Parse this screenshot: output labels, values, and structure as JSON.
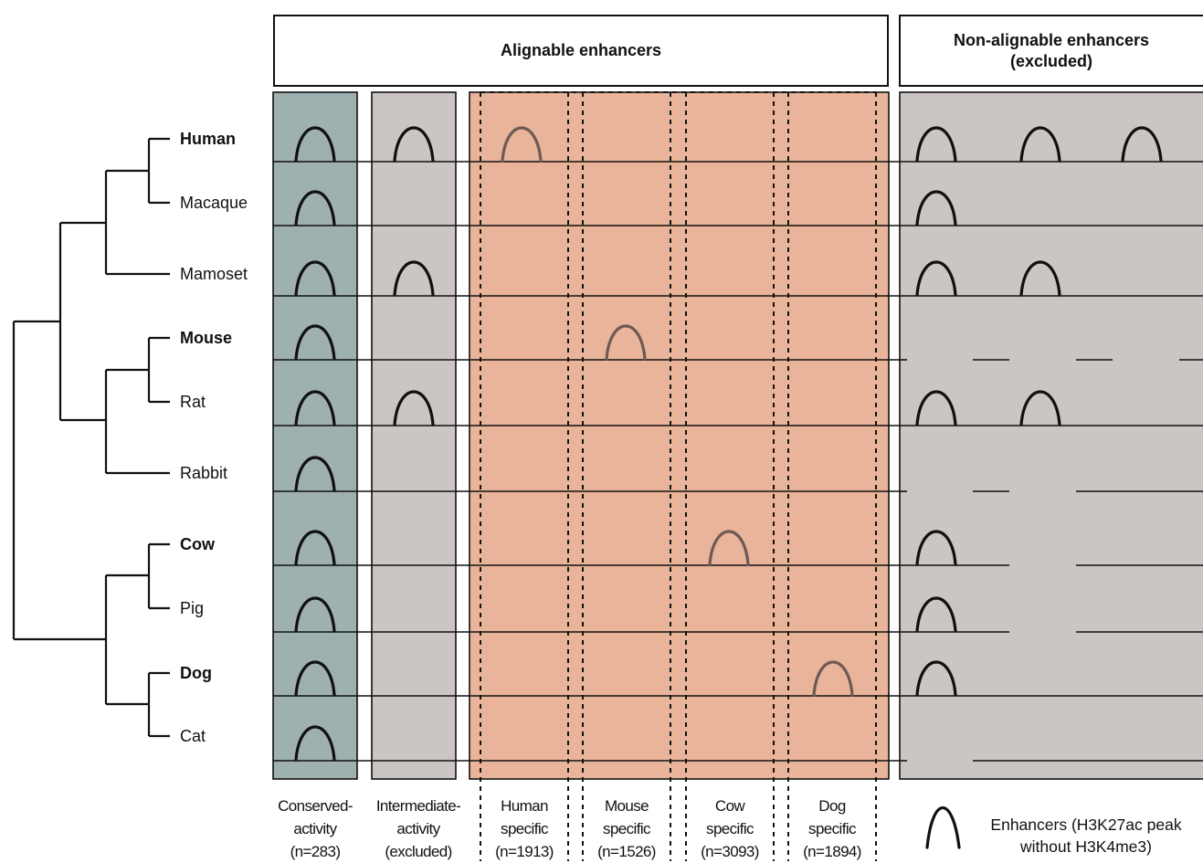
{
  "headers": {
    "alignable": "Alignable enhancers",
    "non_alignable": "Non-alignable enhancers\n(excluded)"
  },
  "species": [
    {
      "name": "Human",
      "bold": true
    },
    {
      "name": "Macaque",
      "bold": false
    },
    {
      "name": "Mamoset",
      "bold": false
    },
    {
      "name": "Mouse",
      "bold": true
    },
    {
      "name": "Rat",
      "bold": false
    },
    {
      "name": "Rabbit",
      "bold": false
    },
    {
      "name": "Cow",
      "bold": true
    },
    {
      "name": "Pig",
      "bold": false
    },
    {
      "name": "Dog",
      "bold": true
    },
    {
      "name": "Cat",
      "bold": false
    }
  ],
  "columns": [
    {
      "label": "Conserved-\nactivity\n(n=283)",
      "color": "#9eb0b0"
    },
    {
      "label": "Intermediate-\nactivity\n(excluded)",
      "color": "#cbc5c3"
    },
    {
      "label": "Human\nspecific\n(n=1913)",
      "color": "#e9b49a"
    },
    {
      "label": "Mouse\nspecific\n(n=1526)",
      "color": "#e9b49a"
    },
    {
      "label": "Cow\nspecific\n(n=3093)",
      "color": "#e9b49a"
    },
    {
      "label": "Dog\nspecific\n(n=1894)",
      "color": "#e9b49a"
    }
  ],
  "non_alignable_color": "#cbc5c3",
  "legend": {
    "text": "Enhancers (H3K27ac peak\nwithout H3K4me3)",
    "icon": "peak-arch-icon"
  },
  "peaks": {
    "conserved": [
      true,
      true,
      true,
      true,
      true,
      true,
      true,
      true,
      true,
      true
    ],
    "intermediate": [
      true,
      false,
      true,
      false,
      true,
      false,
      false,
      false,
      false,
      false
    ],
    "specific": {
      "Human": 0,
      "Mouse": 3,
      "Cow": 6,
      "Dog": 8
    },
    "non_alignable": [
      3,
      1,
      2,
      0,
      2,
      0,
      1,
      1,
      1,
      0
    ]
  }
}
